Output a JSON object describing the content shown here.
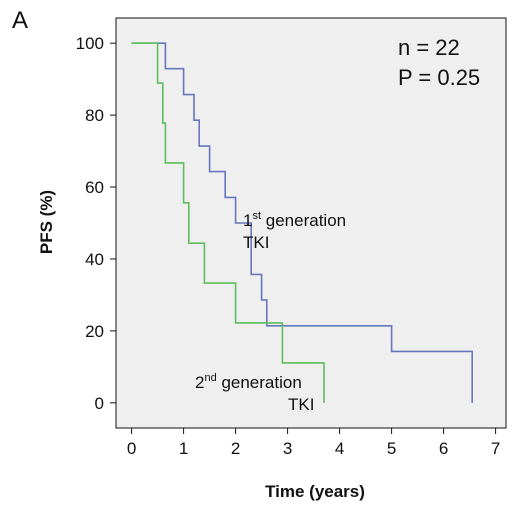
{
  "panel_label": "A",
  "stats": {
    "n_text": "n = 22",
    "p_text": "P = 0.25"
  },
  "labels": {
    "first": {
      "num": "1",
      "sup": "st",
      "rest": " generation",
      "line2": "TKI"
    },
    "second": {
      "num": "2",
      "sup": "nd",
      "rest": " generation",
      "line2": "TKI"
    }
  },
  "colors": {
    "first": "#6677bb",
    "second": "#5cbf5c",
    "plot_bg": "#efefef"
  },
  "chart_data": {
    "type": "line",
    "xlabel": "Time (years)",
    "ylabel": "PFS (%)",
    "xlim": [
      -0.3,
      7.2
    ],
    "ylim": [
      -7,
      107
    ],
    "xticks": [
      0,
      1,
      2,
      3,
      4,
      5,
      6,
      7
    ],
    "yticks": [
      0,
      20,
      40,
      60,
      80,
      100
    ],
    "grid": false,
    "series": [
      {
        "name": "1st generation TKI",
        "step": true,
        "x": [
          0,
          0.65,
          1.0,
          1.2,
          1.3,
          1.5,
          1.8,
          2.0,
          2.3,
          2.5,
          2.6,
          5.0,
          6.55
        ],
        "y": [
          100,
          92.9,
          85.7,
          78.6,
          71.4,
          64.3,
          57.1,
          50.0,
          35.7,
          28.6,
          21.4,
          14.3,
          7.1
        ],
        "end": [
          6.55,
          0
        ]
      },
      {
        "name": "2nd generation TKI",
        "step": true,
        "x": [
          0,
          0.5,
          0.6,
          0.65,
          1.0,
          1.1,
          1.4,
          2.0,
          2.9,
          3.7
        ],
        "y": [
          100,
          88.9,
          77.8,
          66.7,
          55.6,
          44.4,
          33.3,
          22.2,
          11.1,
          11.1
        ],
        "end": [
          3.7,
          0
        ]
      }
    ]
  }
}
